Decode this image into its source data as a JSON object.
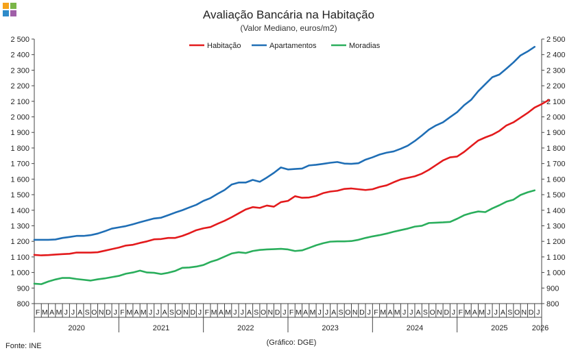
{
  "logo": {
    "colors": [
      "#f5a21b",
      "#7ab648",
      "#2e8bc9",
      "#a05fa8"
    ]
  },
  "chart_data": {
    "type": "line",
    "title": "Avaliação Bancária na Habitação",
    "subtitle": "(Valor Mediano, euros/m2)",
    "ylim": [
      800,
      2500
    ],
    "yticks": [
      800,
      900,
      1000,
      1100,
      1200,
      1300,
      1400,
      1500,
      1600,
      1700,
      1800,
      1900,
      2000,
      2100,
      2200,
      2300,
      2400,
      2500
    ],
    "ytick_labels": [
      "800",
      "900",
      "1 000",
      "1 100",
      "1 200",
      "1 300",
      "1 400",
      "1 500",
      "1 600",
      "1 700",
      "1 800",
      "1 900",
      "2 000",
      "2 100",
      "2 200",
      "2 300",
      "2 400",
      "2 500"
    ],
    "x_start": "2020-01",
    "month_letters": [
      "J",
      "F",
      "M",
      "A",
      "M",
      "J",
      "J",
      "A",
      "S",
      "O",
      "N",
      "D"
    ],
    "years": [
      "2020",
      "2021",
      "2022",
      "2023",
      "2024",
      "2025",
      "2026"
    ],
    "legend_position": "top-center",
    "grid": false,
    "series": [
      {
        "name": "Habitação",
        "color": "#e31a1c",
        "values": [
          1113,
          1110,
          1112,
          1115,
          1118,
          1120,
          1128,
          1128,
          1128,
          1130,
          1140,
          1150,
          1160,
          1173,
          1178,
          1190,
          1200,
          1213,
          1215,
          1222,
          1222,
          1235,
          1252,
          1272,
          1284,
          1292,
          1313,
          1332,
          1355,
          1380,
          1405,
          1420,
          1415,
          1430,
          1423,
          1452,
          1460,
          1490,
          1480,
          1482,
          1492,
          1510,
          1520,
          1525,
          1537,
          1540,
          1535,
          1530,
          1535,
          1550,
          1560,
          1580,
          1598,
          1608,
          1618,
          1635,
          1660,
          1690,
          1720,
          1740,
          1745,
          1775,
          1812,
          1848,
          1868,
          1885,
          1910,
          1945,
          1965,
          1995,
          2025,
          2060,
          2082,
          2108
        ]
      },
      {
        "name": "Apartamentos",
        "color": "#1f6eb5",
        "values": [
          1210,
          1210,
          1210,
          1212,
          1222,
          1228,
          1235,
          1235,
          1240,
          1250,
          1265,
          1282,
          1290,
          1298,
          1310,
          1323,
          1335,
          1347,
          1352,
          1368,
          1385,
          1400,
          1418,
          1435,
          1460,
          1478,
          1505,
          1530,
          1565,
          1578,
          1578,
          1595,
          1583,
          1610,
          1640,
          1675,
          1662,
          1665,
          1668,
          1688,
          1692,
          1698,
          1705,
          1710,
          1700,
          1698,
          1702,
          1725,
          1740,
          1758,
          1770,
          1778,
          1795,
          1815,
          1845,
          1880,
          1918,
          1945,
          1965,
          1998,
          2030,
          2075,
          2110,
          2165,
          2210,
          2255,
          2272,
          2310,
          2350,
          2395,
          2420,
          2450
        ]
      },
      {
        "name": "Moradias",
        "color": "#2aae5c",
        "values": [
          928,
          925,
          942,
          955,
          965,
          965,
          958,
          953,
          948,
          956,
          962,
          970,
          978,
          992,
          1000,
          1012,
          1000,
          998,
          990,
          998,
          1010,
          1030,
          1032,
          1038,
          1048,
          1068,
          1082,
          1102,
          1122,
          1130,
          1125,
          1138,
          1145,
          1148,
          1150,
          1152,
          1148,
          1138,
          1142,
          1158,
          1175,
          1188,
          1198,
          1200,
          1200,
          1202,
          1210,
          1222,
          1232,
          1240,
          1250,
          1262,
          1272,
          1282,
          1295,
          1300,
          1318,
          1320,
          1322,
          1325,
          1345,
          1368,
          1382,
          1392,
          1388,
          1412,
          1432,
          1455,
          1468,
          1498,
          1515,
          1528
        ]
      }
    ],
    "footer_left": "Fonte: INE",
    "footer_center": "(Gráfico: DGE)"
  }
}
